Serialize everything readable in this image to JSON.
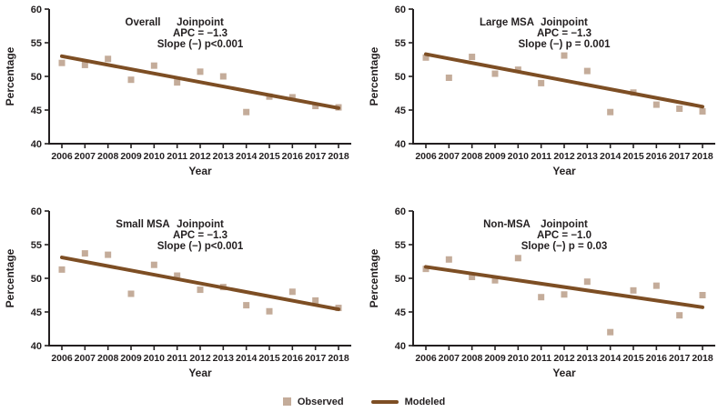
{
  "figure": {
    "ylabel": "Percentage",
    "xlabel": "Year",
    "legend": {
      "observed_label": "Observed",
      "modeled_label": "Modeled"
    },
    "colors": {
      "observed": "#c4ac9a",
      "modeled": "#7d4e24",
      "text": "#231f20",
      "axis": "#231f20",
      "background": "#ffffff"
    }
  },
  "chart_data": [
    {
      "type": "scatter",
      "title": "Overall",
      "annotation": [
        "Joinpoint",
        "APC = −1.3",
        "Slope (−) p<0.001"
      ],
      "x": [
        2006,
        2007,
        2008,
        2009,
        2010,
        2011,
        2012,
        2013,
        2014,
        2015,
        2016,
        2017,
        2018
      ],
      "ylim": [
        40,
        60
      ],
      "yticks": [
        40,
        45,
        50,
        55,
        60
      ],
      "series": [
        {
          "name": "Observed",
          "type": "scatter",
          "values": [
            52.0,
            51.7,
            52.6,
            49.5,
            51.6,
            49.1,
            50.7,
            50.0,
            44.7,
            47.0,
            46.9,
            45.6,
            45.4
          ]
        },
        {
          "name": "Modeled",
          "type": "trend-line",
          "start": 53.0,
          "end": 45.3
        }
      ]
    },
    {
      "type": "scatter",
      "title": "Large MSA",
      "annotation": [
        "Joinpoint",
        "APC = −1.3",
        "Slope (−) p = 0.001"
      ],
      "x": [
        2006,
        2007,
        2008,
        2009,
        2010,
        2011,
        2012,
        2013,
        2014,
        2015,
        2016,
        2017,
        2018
      ],
      "ylim": [
        40,
        60
      ],
      "yticks": [
        40,
        45,
        50,
        55,
        60
      ],
      "series": [
        {
          "name": "Observed",
          "type": "scatter",
          "values": [
            52.8,
            49.8,
            52.9,
            50.4,
            51.0,
            49.0,
            53.1,
            50.8,
            44.7,
            47.6,
            45.8,
            45.2,
            44.8
          ]
        },
        {
          "name": "Modeled",
          "type": "trend-line",
          "start": 53.3,
          "end": 45.5
        }
      ]
    },
    {
      "type": "scatter",
      "title": "Small MSA",
      "annotation": [
        "Joinpoint",
        "APC = −1.3",
        "Slope (−) p<0.001"
      ],
      "x": [
        2006,
        2007,
        2008,
        2009,
        2010,
        2011,
        2012,
        2013,
        2014,
        2015,
        2016,
        2017,
        2018
      ],
      "ylim": [
        40,
        60
      ],
      "yticks": [
        40,
        45,
        50,
        55,
        60
      ],
      "series": [
        {
          "name": "Observed",
          "type": "scatter",
          "values": [
            51.3,
            53.7,
            53.5,
            47.7,
            52.0,
            50.4,
            48.3,
            48.7,
            46.0,
            45.1,
            48.0,
            46.7,
            45.6
          ]
        },
        {
          "name": "Modeled",
          "type": "trend-line",
          "start": 53.1,
          "end": 45.4
        }
      ]
    },
    {
      "type": "scatter",
      "title": "Non-MSA",
      "annotation": [
        "Joinpoint",
        "APC = −1.0",
        "Slope (−) p = 0.03"
      ],
      "x": [
        2006,
        2007,
        2008,
        2009,
        2010,
        2011,
        2012,
        2013,
        2014,
        2015,
        2016,
        2017,
        2018
      ],
      "ylim": [
        40,
        60
      ],
      "yticks": [
        40,
        45,
        50,
        55,
        60
      ],
      "series": [
        {
          "name": "Observed",
          "type": "scatter",
          "values": [
            51.4,
            52.8,
            50.2,
            49.7,
            53.0,
            47.2,
            47.6,
            49.5,
            42.0,
            48.2,
            48.9,
            44.5,
            47.5
          ]
        },
        {
          "name": "Modeled",
          "type": "trend-line",
          "start": 51.7,
          "end": 45.7
        }
      ]
    }
  ]
}
